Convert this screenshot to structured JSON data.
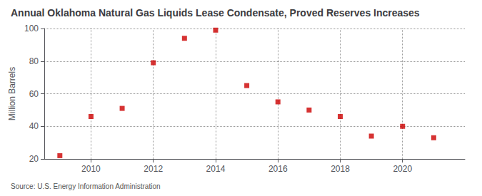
{
  "chart_data": {
    "type": "scatter",
    "title": "Annual Oklahoma Natural Gas Liquids Lease Condensate, Proved Reserves Increases",
    "ylabel": "Million Barrels",
    "annotation": "Source: U.S. Energy Information Administration",
    "x": [
      2009,
      2010,
      2011,
      2012,
      2013,
      2014,
      2015,
      2016,
      2017,
      2018,
      2019,
      2020,
      2021
    ],
    "values": [
      22,
      46,
      51,
      79,
      94,
      99,
      65,
      55,
      50,
      46,
      34,
      40,
      33
    ],
    "color": "#cc0000",
    "marker": "square",
    "xlim": [
      2008.5,
      2022.0
    ],
    "xticks": [
      2010,
      2012,
      2014,
      2016,
      2018,
      2020
    ],
    "ylim": [
      20,
      100
    ],
    "yticks": [
      20,
      40,
      60,
      80,
      100
    ],
    "grid": true
  }
}
